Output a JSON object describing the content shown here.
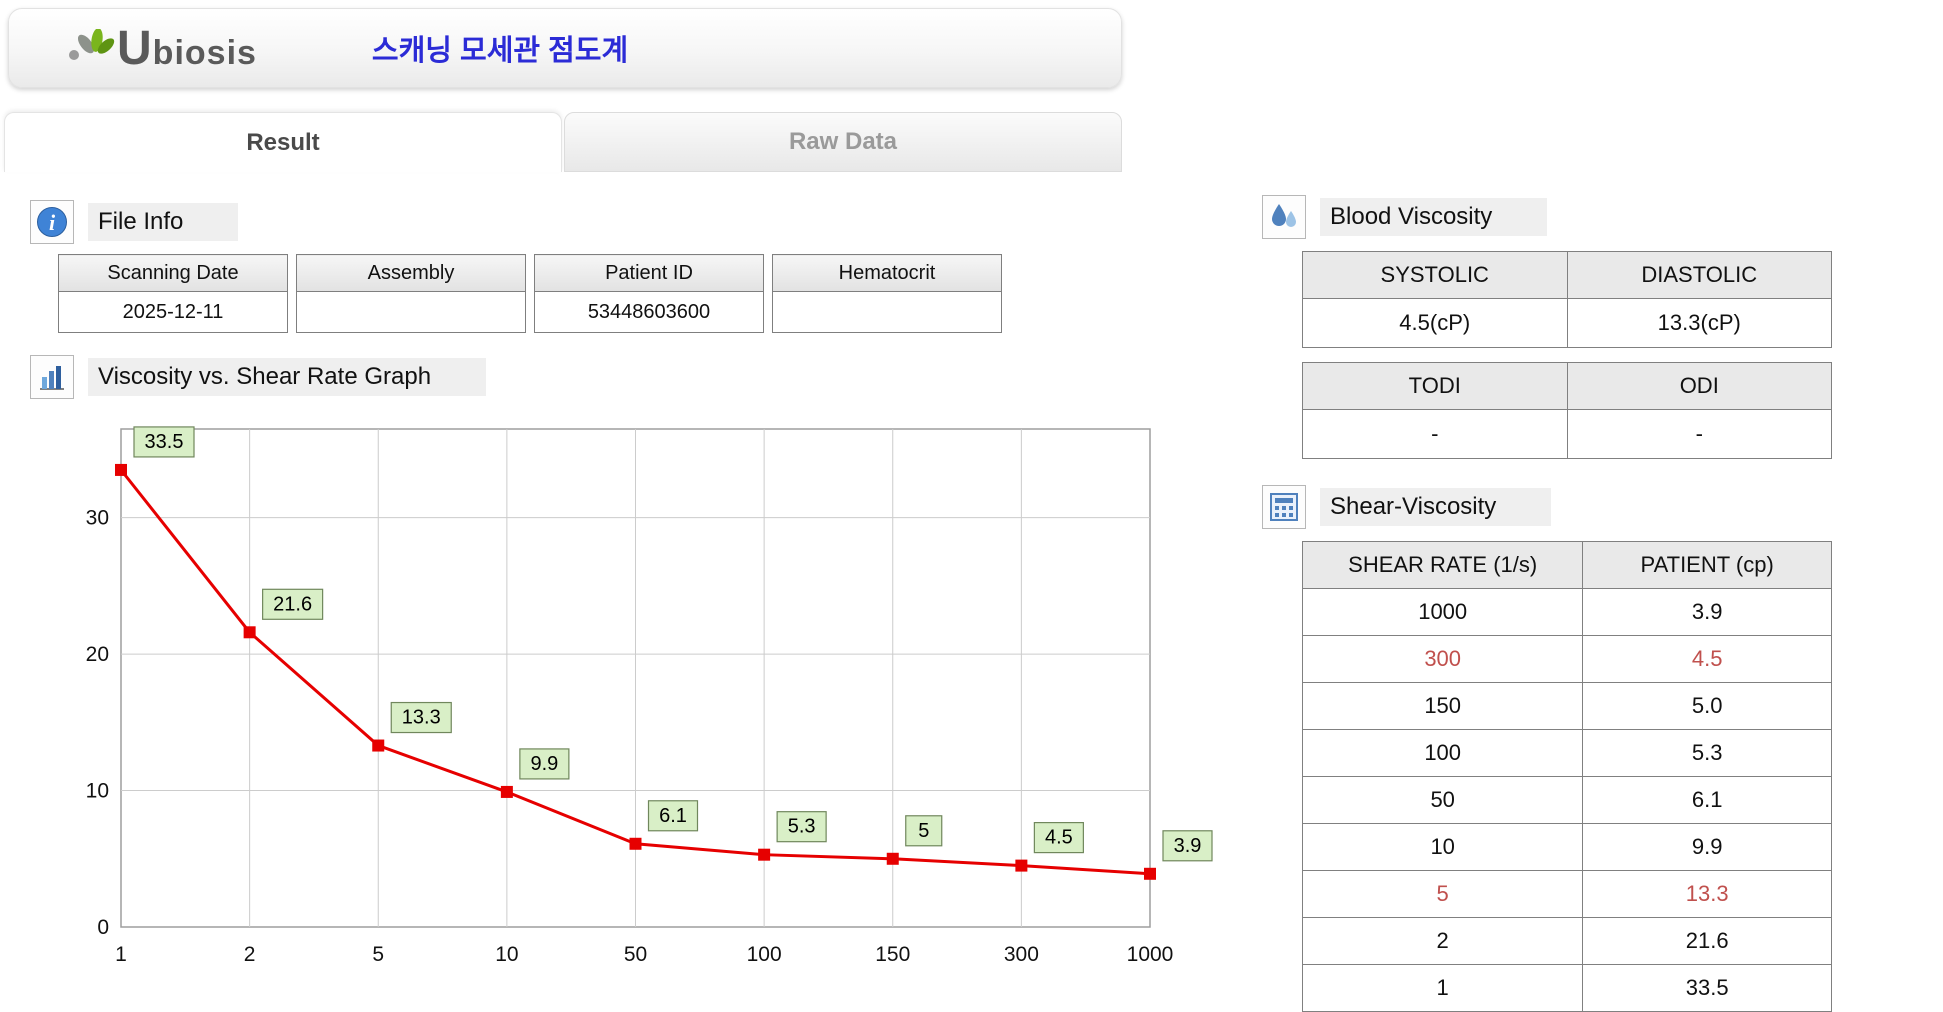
{
  "header": {
    "logo_text": "Ubiosis",
    "title": "스캐닝 모세관 점도계"
  },
  "tabs": {
    "result": "Result",
    "raw_data": "Raw Data"
  },
  "file_info": {
    "label": "File Info",
    "fields": [
      {
        "header": "Scanning Date",
        "value": "2025-12-11"
      },
      {
        "header": "Assembly",
        "value": ""
      },
      {
        "header": "Patient ID",
        "value": "53448603600"
      },
      {
        "header": "Hematocrit",
        "value": ""
      }
    ]
  },
  "graph_section": {
    "label": "Viscosity vs. Shear Rate Graph"
  },
  "chart_data": {
    "type": "line",
    "title": "Viscosity vs. Shear Rate Graph",
    "xlabel": "",
    "ylabel": "",
    "x_categories": [
      "1",
      "2",
      "5",
      "10",
      "50",
      "100",
      "150",
      "300",
      "1000"
    ],
    "values": [
      33.5,
      21.6,
      13.3,
      9.9,
      6.1,
      5.3,
      5,
      4.5,
      3.9
    ],
    "point_labels": [
      "33.5",
      "21.6",
      "13.3",
      "9.9",
      "6.1",
      "5.3",
      "5",
      "4.5",
      "3.9"
    ],
    "y_ticks": [
      0,
      10,
      20,
      30
    ],
    "ylim": [
      0,
      36.5
    ],
    "grid": true,
    "line_color": "#e60000",
    "marker_color": "#e60000",
    "label_box_fill": "#d9efc7",
    "label_box_border": "#70875c"
  },
  "blood_viscosity": {
    "label": "Blood Viscosity",
    "table1": {
      "headers": [
        "SYSTOLIC",
        "DIASTOLIC"
      ],
      "values": [
        "4.5(cP)",
        "13.3(cP)"
      ]
    },
    "table2": {
      "headers": [
        "TODI",
        "ODI"
      ],
      "values": [
        "-",
        "-"
      ]
    }
  },
  "shear_viscosity": {
    "label": "Shear-Viscosity",
    "headers": [
      "SHEAR RATE (1/s)",
      "PATIENT (cp)"
    ],
    "highlight_color": "#c0504d",
    "rows": [
      {
        "shear_rate": "1000",
        "patient": "3.9",
        "highlight": false
      },
      {
        "shear_rate": "300",
        "patient": "4.5",
        "highlight": true
      },
      {
        "shear_rate": "150",
        "patient": "5.0",
        "highlight": false
      },
      {
        "shear_rate": "100",
        "patient": "5.3",
        "highlight": false
      },
      {
        "shear_rate": "50",
        "patient": "6.1",
        "highlight": false
      },
      {
        "shear_rate": "10",
        "patient": "9.9",
        "highlight": false
      },
      {
        "shear_rate": "5",
        "patient": "13.3",
        "highlight": true
      },
      {
        "shear_rate": "2",
        "patient": "21.6",
        "highlight": false
      },
      {
        "shear_rate": "1",
        "patient": "33.5",
        "highlight": false
      }
    ]
  }
}
